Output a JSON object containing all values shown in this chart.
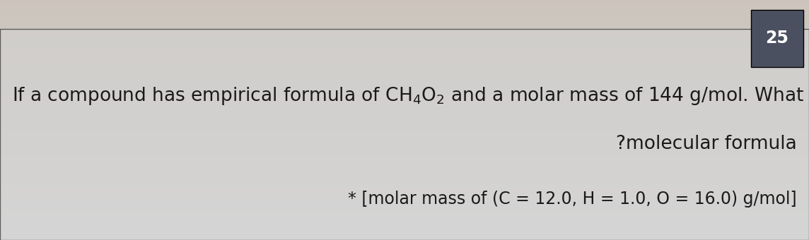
{
  "bg_top_color": "#c8c0b8",
  "bg_bottom_color": "#d8d8d8",
  "content_bg_color": "#d0d0d0",
  "number_box_color": "#4a5060",
  "number_text": "25",
  "number_text_color": "#ffffff",
  "line1_text": "If a compound has empirical formula of $\\mathrm{CH_4O_2}$ and a molar mass of 144 g/mol. What is its",
  "line2_text": "?molecular formula",
  "line3_text": "* [molar mass of (C = 12.0, H = 1.0, O = 16.0) g/mol]",
  "main_text_color": "#1a1a1a",
  "main_fontsize": 19,
  "number_fontsize": 17,
  "figsize": [
    11.44,
    3.4
  ],
  "dpi": 100
}
